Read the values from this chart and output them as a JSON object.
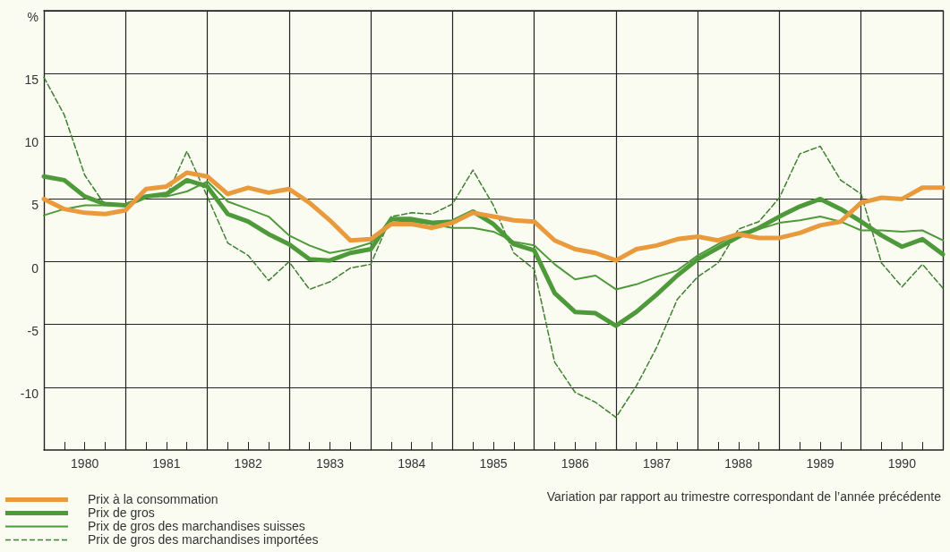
{
  "chart_data": {
    "type": "line",
    "x": [
      1980,
      1980.25,
      1980.5,
      1980.75,
      1981,
      1981.25,
      1981.5,
      1981.75,
      1982,
      1982.25,
      1982.5,
      1982.75,
      1983,
      1983.25,
      1983.5,
      1983.75,
      1984,
      1984.25,
      1984.5,
      1984.75,
      1985,
      1985.25,
      1985.5,
      1985.75,
      1986,
      1986.25,
      1986.5,
      1986.75,
      1987,
      1987.25,
      1987.5,
      1987.75,
      1988,
      1988.25,
      1988.5,
      1988.75,
      1989,
      1989.25,
      1989.5,
      1989.75,
      1990,
      1990.25,
      1990.5,
      1990.75,
      1991
    ],
    "series": [
      {
        "name": "Prix à la consommation",
        "color": "#e89a3c",
        "values": [
          5.0,
          4.2,
          3.9,
          3.8,
          4.1,
          5.8,
          6.0,
          7.1,
          6.8,
          5.4,
          5.9,
          5.5,
          5.8,
          4.7,
          3.3,
          1.7,
          1.8,
          3.0,
          3.0,
          2.7,
          3.1,
          3.9,
          3.6,
          3.3,
          3.2,
          1.7,
          1.0,
          0.7,
          0.1,
          1.0,
          1.3,
          1.8,
          2.0,
          1.7,
          2.2,
          1.9,
          1.9,
          2.3,
          2.9,
          3.2,
          4.7,
          5.1,
          5.0,
          5.9,
          5.9
        ]
      },
      {
        "name": "Prix de gros",
        "color": "#4e9a3a",
        "values": [
          6.8,
          6.5,
          5.2,
          4.6,
          4.5,
          5.2,
          5.4,
          6.5,
          6.0,
          3.8,
          3.2,
          2.2,
          1.4,
          0.2,
          0.1,
          0.7,
          1.0,
          3.4,
          3.4,
          3.1,
          3.2,
          4.0,
          3.0,
          1.4,
          0.9,
          -2.5,
          -4.0,
          -4.1,
          -5.1,
          -4.0,
          -2.6,
          -1.1,
          0.2,
          1.1,
          2.0,
          2.7,
          3.6,
          4.4,
          5.0,
          4.2,
          3.2,
          2.1,
          1.2,
          1.8,
          0.6
        ]
      },
      {
        "name": "Prix de gros des marchandises suisses",
        "color": "#4e9a3a",
        "values": [
          3.7,
          4.2,
          4.5,
          4.5,
          4.6,
          5.2,
          5.2,
          5.6,
          6.4,
          4.8,
          4.2,
          3.6,
          2.1,
          1.3,
          0.7,
          1.0,
          1.5,
          3.3,
          3.2,
          3.0,
          2.7,
          2.7,
          2.4,
          1.6,
          1.3,
          -0.2,
          -1.4,
          -1.1,
          -2.2,
          -1.8,
          -1.2,
          -0.7,
          0.5,
          1.4,
          2.3,
          2.6,
          3.1,
          3.3,
          3.6,
          3.2,
          2.5,
          2.5,
          2.4,
          2.5,
          1.7
        ]
      },
      {
        "name": "Prix de gros des marchandises importées",
        "color": "#3f7f32",
        "line_style": "dashed",
        "values": [
          14.7,
          11.7,
          6.9,
          4.5,
          4.5,
          5.2,
          5.2,
          8.8,
          5.2,
          1.5,
          0.5,
          -1.5,
          0.0,
          -2.2,
          -1.6,
          -0.5,
          -0.2,
          3.6,
          3.9,
          3.8,
          4.6,
          7.3,
          4.5,
          0.7,
          -0.6,
          -8.0,
          -10.4,
          -11.2,
          -12.4,
          -9.9,
          -6.8,
          -3.0,
          -1.2,
          -0.1,
          2.6,
          3.2,
          5.1,
          8.6,
          9.2,
          6.5,
          5.4,
          -0.1,
          -2.0,
          -0.2,
          -2.1
        ]
      }
    ],
    "xlim": [
      1980,
      1991
    ],
    "xticks": [
      {
        "value": 1980,
        "label": null
      },
      {
        "value": 1980.25,
        "label": null
      },
      {
        "value": 1980.5,
        "label": "1980"
      },
      {
        "value": 1980.75,
        "label": null
      },
      {
        "value": 1981,
        "label": null
      },
      {
        "value": 1981.25,
        "label": null
      },
      {
        "value": 1981.5,
        "label": "1981"
      },
      {
        "value": 1981.75,
        "label": null
      },
      {
        "value": 1982,
        "label": null
      },
      {
        "value": 1982.25,
        "label": null
      },
      {
        "value": 1982.5,
        "label": "1982"
      },
      {
        "value": 1982.75,
        "label": null
      },
      {
        "value": 1983,
        "label": null
      },
      {
        "value": 1983.25,
        "label": null
      },
      {
        "value": 1983.5,
        "label": "1983"
      },
      {
        "value": 1983.75,
        "label": null
      },
      {
        "value": 1984,
        "label": null
      },
      {
        "value": 1984.25,
        "label": null
      },
      {
        "value": 1984.5,
        "label": "1984"
      },
      {
        "value": 1984.75,
        "label": null
      },
      {
        "value": 1985,
        "label": null
      },
      {
        "value": 1985.25,
        "label": null
      },
      {
        "value": 1985.5,
        "label": "1985"
      },
      {
        "value": 1985.75,
        "label": null
      },
      {
        "value": 1986,
        "label": null
      },
      {
        "value": 1986.25,
        "label": null
      },
      {
        "value": 1986.5,
        "label": "1986"
      },
      {
        "value": 1986.75,
        "label": null
      },
      {
        "value": 1987,
        "label": null
      },
      {
        "value": 1987.25,
        "label": null
      },
      {
        "value": 1987.5,
        "label": "1987"
      },
      {
        "value": 1987.75,
        "label": null
      },
      {
        "value": 1988,
        "label": null
      },
      {
        "value": 1988.25,
        "label": null
      },
      {
        "value": 1988.5,
        "label": "1988"
      },
      {
        "value": 1988.75,
        "label": null
      },
      {
        "value": 1989,
        "label": null
      },
      {
        "value": 1989.25,
        "label": null
      },
      {
        "value": 1989.5,
        "label": "1989"
      },
      {
        "value": 1989.75,
        "label": null
      },
      {
        "value": 1990,
        "label": null
      },
      {
        "value": 1990.25,
        "label": null
      },
      {
        "value": 1990.5,
        "label": "1990"
      },
      {
        "value": 1990.75,
        "label": null
      },
      {
        "value": 1991,
        "label": null
      }
    ],
    "ylim": [
      -15,
      20
    ],
    "yticks": [
      -10,
      -5,
      0,
      5,
      10,
      15,
      {
        "value": 20,
        "label": "%"
      }
    ],
    "grid": true,
    "legend": "bottom left",
    "line_style": "solid",
    "marker": "none",
    "annotations": [
      "Variation par rapport au trimestre correspondant de l’année précédente"
    ]
  }
}
